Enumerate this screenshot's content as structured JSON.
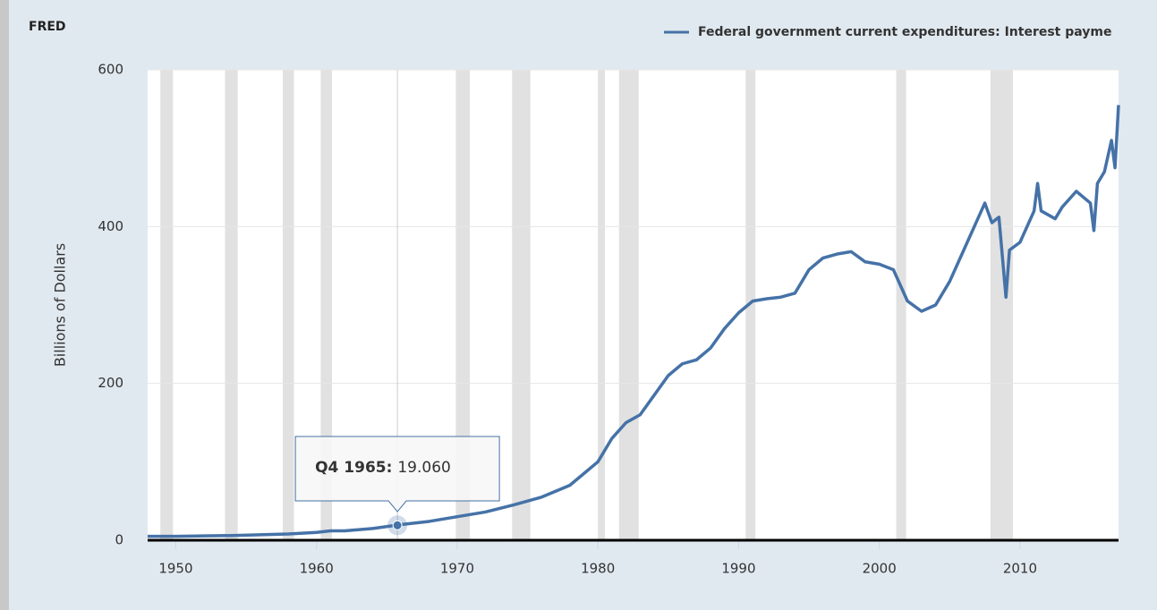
{
  "chart_data": {
    "type": "line",
    "logo": "FRED",
    "ylabel": "Billions of Dollars",
    "xlim": [
      1948,
      2017
    ],
    "xticks": [
      1950,
      1960,
      1970,
      1980,
      1990,
      2000,
      2010
    ],
    "ylim": [
      0,
      600
    ],
    "yticks": [
      0,
      200,
      400,
      600
    ],
    "grid": true,
    "legend": "top-right",
    "recessions": [
      [
        1948.9,
        1949.8
      ],
      [
        1953.5,
        1954.4
      ],
      [
        1957.6,
        1958.4
      ],
      [
        1960.3,
        1961.1
      ],
      [
        1969.9,
        1970.9
      ],
      [
        1973.9,
        1975.2
      ],
      [
        1980.0,
        1980.5
      ],
      [
        1981.5,
        1982.9
      ],
      [
        1990.5,
        1991.2
      ],
      [
        2001.2,
        2001.9
      ],
      [
        2007.9,
        2009.5
      ]
    ],
    "x": [
      1948,
      1950,
      1952,
      1954,
      1956,
      1958,
      1960,
      1961,
      1962,
      1964,
      1966,
      1968,
      1970,
      1972,
      1974,
      1976,
      1978,
      1979,
      1980,
      1981,
      1982,
      1983,
      1984,
      1985,
      1986,
      1987,
      1988,
      1989,
      1990,
      1991,
      1992,
      1993,
      1994,
      1995,
      1996,
      1997,
      1998,
      1999,
      2000,
      2001,
      2002,
      2003,
      2004,
      2005,
      2006,
      2007,
      2007.5,
      2008,
      2008.5,
      2009,
      2009.25,
      2010,
      2011,
      2011.25,
      2011.5,
      2012,
      2012.5,
      2013,
      2014,
      2015,
      2015.25,
      2015.5,
      2016,
      2016.5,
      2016.75,
      2017
    ],
    "series": [
      {
        "name": "Federal government current expenditures: Interest payme",
        "color": "#4572a7",
        "values": [
          5,
          5,
          5.5,
          6,
          7,
          8,
          10,
          12,
          12,
          15,
          20,
          24,
          30,
          36,
          45,
          55,
          70,
          85,
          100,
          130,
          150,
          160,
          185,
          210,
          225,
          230,
          245,
          270,
          290,
          305,
          308,
          310,
          315,
          345,
          360,
          365,
          368,
          355,
          352,
          345,
          305,
          292,
          300,
          330,
          370,
          410,
          430,
          405,
          412,
          310,
          370,
          380,
          420,
          455,
          420,
          415,
          410,
          425,
          445,
          430,
          395,
          455,
          470,
          510,
          475,
          555
        ]
      }
    ],
    "tooltip": {
      "label": "Q4 1965",
      "x": 1965.75,
      "value": 19.06,
      "value_label": "19.060"
    }
  }
}
